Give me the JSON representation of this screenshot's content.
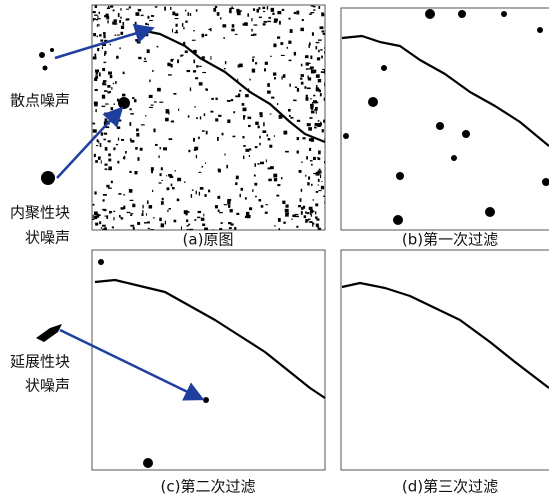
{
  "labels": {
    "scatter_noise": "散点噪声",
    "cohesive_noise": [
      "内聚性块",
      "状噪声"
    ],
    "extended_noise": [
      "延展性块",
      "状噪声"
    ]
  },
  "captions": {
    "a": "(a)原图",
    "b": "(b)第一次过滤",
    "c": "(c)第二次过滤",
    "d": "(d)第三次过滤"
  }
}
